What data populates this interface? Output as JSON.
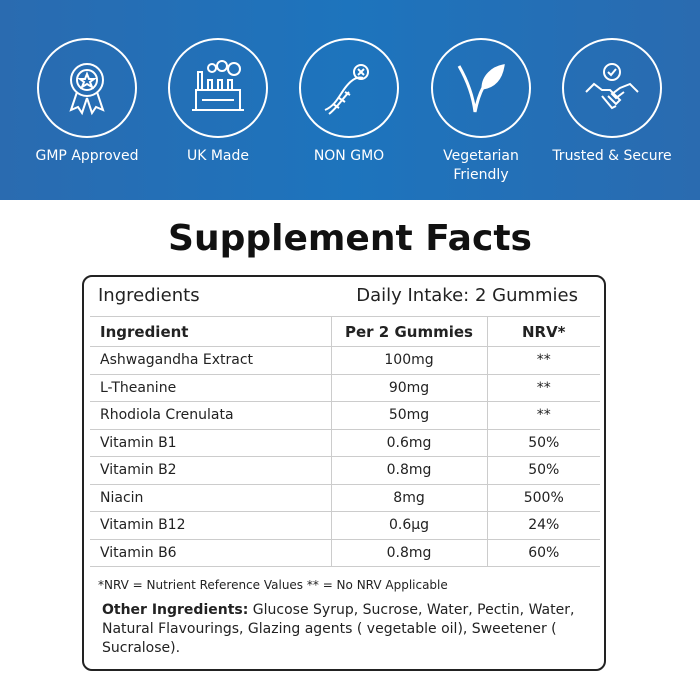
{
  "badges": [
    {
      "icon": "award-ribbon-icon",
      "label": "GMP Approved"
    },
    {
      "icon": "factory-icon",
      "label": "UK Made"
    },
    {
      "icon": "dna-icon",
      "label": "NON GMO"
    },
    {
      "icon": "vegetarian-leaf-icon",
      "label": "Vegetarian Friendly"
    },
    {
      "icon": "handshake-icon",
      "label": "Trusted & Secure"
    }
  ],
  "title": "Supplement Facts",
  "facts": {
    "ingredients_heading": "Ingredients",
    "daily_intake": "Daily Intake:  2 Gummies",
    "columns": [
      "Ingredient",
      "Per 2 Gummies",
      "NRV*"
    ],
    "rows": [
      [
        "Ashwagandha Extract",
        "100mg",
        "**"
      ],
      [
        "L-Theanine",
        "90mg",
        "**"
      ],
      [
        "Rhodiola Crenulata",
        "50mg",
        "**"
      ],
      [
        "Vitamin B1",
        "0.6mg",
        "50%"
      ],
      [
        "Vitamin B2",
        "0.8mg",
        "50%"
      ],
      [
        "Niacin",
        "8mg",
        "500%"
      ],
      [
        "Vitamin B12",
        "0.6µg",
        "24%"
      ],
      [
        "Vitamin B6",
        "0.8mg",
        "60%"
      ]
    ],
    "footnote": "*NRV = Nutrient Reference Values  ** = No NRV Applicable",
    "other_label": "Other Ingredients:",
    "other_text": " Glucose Syrup, Sucrose, Water, Pectin, Water, Natural Flavourings, Glazing agents ( vegetable oil), Sweetener ( Sucralose)."
  },
  "colors": {
    "banner": "#1d74bd"
  }
}
